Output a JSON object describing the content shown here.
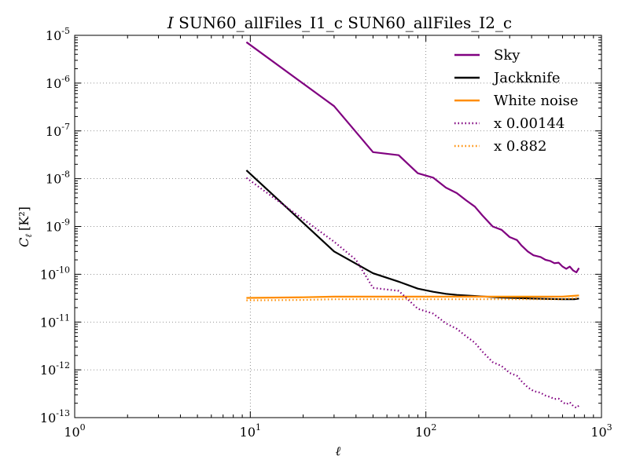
{
  "chart_data": {
    "type": "line",
    "title_prefix": "I",
    "title_rest": " SUN60_allFiles_I1_c SUN60_allFiles_I2_c",
    "xlabel": "ℓ",
    "ylabel_main": "C",
    "ylabel_sub": "ℓ",
    "ylabel_unit": "[K²]",
    "x_scale": "log",
    "y_scale": "log",
    "xlim": [
      1,
      1000
    ],
    "ylim": [
      1e-13,
      1e-05
    ],
    "grid": true,
    "legend_position": "top-right",
    "x_ticks": [
      {
        "value": 1,
        "base": "10",
        "exp": "0"
      },
      {
        "value": 10,
        "base": "10",
        "exp": "1"
      },
      {
        "value": 100,
        "base": "10",
        "exp": "2"
      },
      {
        "value": 1000,
        "base": "10",
        "exp": "3"
      }
    ],
    "y_ticks": [
      {
        "value": 1e-13,
        "base": "10",
        "exp": "-13"
      },
      {
        "value": 1e-12,
        "base": "10",
        "exp": "-12"
      },
      {
        "value": 1e-11,
        "base": "10",
        "exp": "-11"
      },
      {
        "value": 1e-10,
        "base": "10",
        "exp": "-10"
      },
      {
        "value": 1e-09,
        "base": "10",
        "exp": "-9"
      },
      {
        "value": 1e-08,
        "base": "10",
        "exp": "-8"
      },
      {
        "value": 1e-07,
        "base": "10",
        "exp": "-7"
      },
      {
        "value": 1e-06,
        "base": "10",
        "exp": "-6"
      },
      {
        "value": 1e-05,
        "base": "10",
        "exp": "-5"
      }
    ],
    "series": [
      {
        "name": "Sky",
        "color": "#800080",
        "style": "solid",
        "points": [
          [
            9.5,
            7.2e-06
          ],
          [
            30,
            3.3e-07
          ],
          [
            50,
            3.6e-08
          ],
          [
            70,
            3.1e-08
          ],
          [
            90,
            1.3e-08
          ],
          [
            110,
            1.05e-08
          ],
          [
            130,
            6.5e-09
          ],
          [
            150,
            5e-09
          ],
          [
            170,
            3.5e-09
          ],
          [
            190,
            2.6e-09
          ],
          [
            210,
            1.7e-09
          ],
          [
            240,
            1e-09
          ],
          [
            270,
            8.5e-10
          ],
          [
            300,
            6e-10
          ],
          [
            330,
            5.2e-10
          ],
          [
            350,
            4e-10
          ],
          [
            380,
            3e-10
          ],
          [
            410,
            2.5e-10
          ],
          [
            450,
            2.3e-10
          ],
          [
            480,
            2e-10
          ],
          [
            510,
            1.9e-10
          ],
          [
            540,
            1.7e-10
          ],
          [
            570,
            1.75e-10
          ],
          [
            600,
            1.45e-10
          ],
          [
            630,
            1.3e-10
          ],
          [
            660,
            1.45e-10
          ],
          [
            690,
            1.2e-10
          ],
          [
            720,
            1.1e-10
          ],
          [
            745,
            1.35e-10
          ]
        ]
      },
      {
        "name": "Jackknife",
        "color": "#000000",
        "style": "solid",
        "points": [
          [
            9.5,
            1.5e-08
          ],
          [
            30,
            3e-10
          ],
          [
            50,
            1.05e-10
          ],
          [
            70,
            7e-11
          ],
          [
            90,
            5e-11
          ],
          [
            110,
            4.3e-11
          ],
          [
            130,
            3.9e-11
          ],
          [
            150,
            3.7e-11
          ],
          [
            190,
            3.5e-11
          ],
          [
            250,
            3.3e-11
          ],
          [
            320,
            3.2e-11
          ],
          [
            400,
            3.1e-11
          ],
          [
            500,
            3.05e-11
          ],
          [
            600,
            3e-11
          ],
          [
            700,
            3e-11
          ],
          [
            745,
            3.1e-11
          ]
        ]
      },
      {
        "name": "White noise",
        "color": "#ff8c00",
        "style": "solid",
        "points": [
          [
            9.5,
            3.2e-11
          ],
          [
            20,
            3.3e-11
          ],
          [
            30,
            3.4e-11
          ],
          [
            60,
            3.4e-11
          ],
          [
            100,
            3.4e-11
          ],
          [
            200,
            3.4e-11
          ],
          [
            400,
            3.4e-11
          ],
          [
            600,
            3.4e-11
          ],
          [
            745,
            3.6e-11
          ]
        ]
      },
      {
        "name": "x 0.00144",
        "color": "#800080",
        "style": "dotted",
        "points": [
          [
            9.5,
            1.04e-08
          ],
          [
            30,
            4.8e-10
          ],
          [
            40,
            2e-10
          ],
          [
            50,
            5.2e-11
          ],
          [
            60,
            4.8e-11
          ],
          [
            70,
            4.5e-11
          ],
          [
            90,
            1.9e-11
          ],
          [
            110,
            1.5e-11
          ],
          [
            130,
            9.4e-12
          ],
          [
            150,
            7.2e-12
          ],
          [
            170,
            5e-12
          ],
          [
            190,
            3.7e-12
          ],
          [
            210,
            2.4e-12
          ],
          [
            240,
            1.45e-12
          ],
          [
            270,
            1.2e-12
          ],
          [
            300,
            8.6e-13
          ],
          [
            330,
            7.5e-13
          ],
          [
            350,
            5.8e-13
          ],
          [
            380,
            4.3e-13
          ],
          [
            410,
            3.6e-13
          ],
          [
            450,
            3.3e-13
          ],
          [
            480,
            2.9e-13
          ],
          [
            510,
            2.7e-13
          ],
          [
            540,
            2.45e-13
          ],
          [
            570,
            2.5e-13
          ],
          [
            600,
            2.1e-13
          ],
          [
            630,
            1.9e-13
          ],
          [
            660,
            2.1e-13
          ],
          [
            690,
            1.75e-13
          ],
          [
            720,
            1.6e-13
          ],
          [
            745,
            1.8e-13
          ]
        ]
      },
      {
        "name": "x 0.882",
        "color": "#ff8c00",
        "style": "dotted",
        "points": [
          [
            9.5,
            2.85e-11
          ],
          [
            20,
            2.9e-11
          ],
          [
            30,
            3e-11
          ],
          [
            60,
            3e-11
          ],
          [
            100,
            3e-11
          ],
          [
            200,
            3e-11
          ],
          [
            400,
            3e-11
          ],
          [
            600,
            3e-11
          ],
          [
            745,
            3.2e-11
          ]
        ]
      }
    ]
  }
}
